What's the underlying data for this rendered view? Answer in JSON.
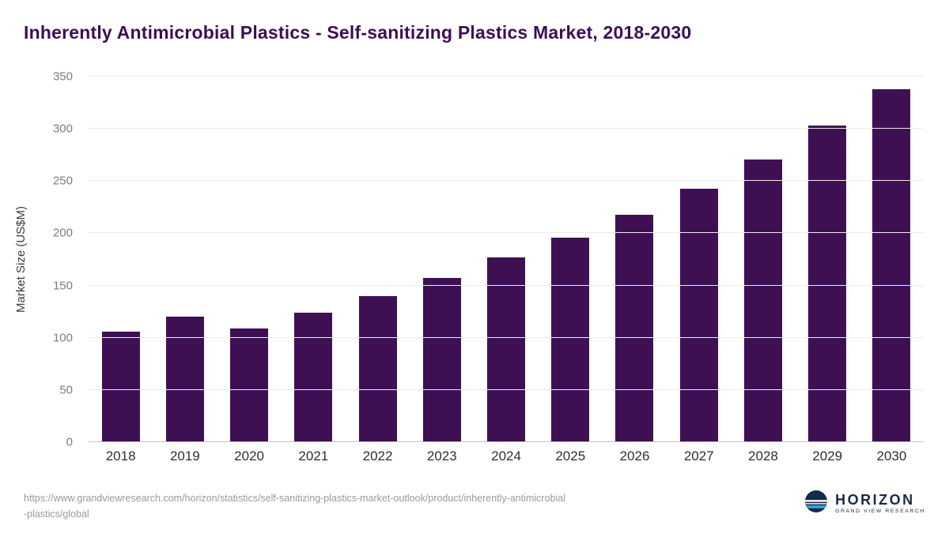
{
  "page": {
    "title": "Inherently Antimicrobial Plastics - Self-sanitizing Plastics Market, 2018-2030"
  },
  "chart_data": {
    "type": "bar",
    "title": "Inherently Antimicrobial Plastics - Self-sanitizing Plastics Market, 2018-2030",
    "categories": [
      "2018",
      "2019",
      "2020",
      "2021",
      "2022",
      "2023",
      "2024",
      "2025",
      "2026",
      "2027",
      "2028",
      "2029",
      "2030"
    ],
    "values": [
      106,
      120,
      109,
      124,
      140,
      157,
      177,
      196,
      218,
      243,
      271,
      303,
      338
    ],
    "xlabel": "",
    "ylabel": "Market Size (US$M)",
    "ylim": [
      0,
      350
    ],
    "ytick_step": 50,
    "yticks": [
      0,
      50,
      100,
      150,
      200,
      250,
      300,
      350
    ],
    "grid": "horizontal",
    "legend_position": "none",
    "bar_color": "#3e1053"
  },
  "footer": {
    "source_line1": "https://www.grandviewresearch.com/horizon/statistics/self-sanitizing-plastics-market-outlook/product/inherently-antimicrobial",
    "source_line2": "-plastics/global",
    "logo": {
      "name": "HORIZON",
      "subtitle": "GRAND VIEW RESEARCH",
      "icon": "horizon-globe-icon",
      "navy_color": "#18294b",
      "teal_color": "#2bb3d6"
    }
  }
}
